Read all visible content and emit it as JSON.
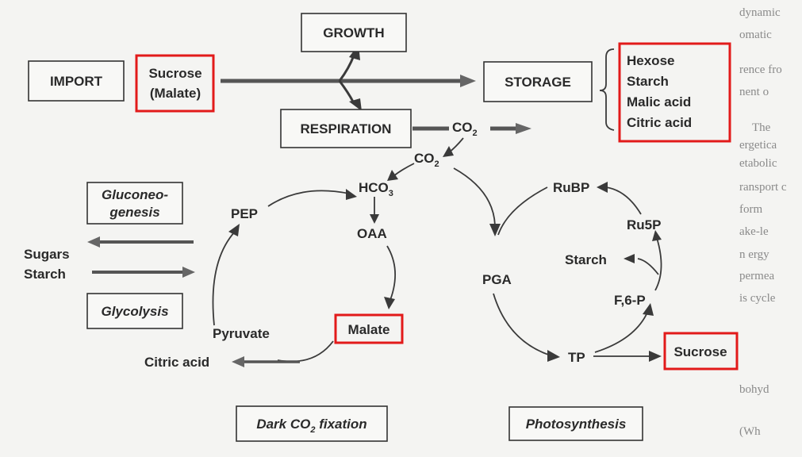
{
  "nodes": {
    "import": "IMPORT",
    "sucrose_import": "Sucrose",
    "malate_import": "(Malate)",
    "growth": "GROWTH",
    "storage": "STORAGE",
    "respiration": "RESPIRATION",
    "co2_resp": "CO",
    "co2_loop": "CO",
    "co2_sub": "2",
    "storage_items": [
      "Hexose",
      "Starch",
      "Malic acid",
      "Citric acid"
    ],
    "gluconeogenesis": [
      "Gluconeo-",
      "genesis"
    ],
    "sugars": "Sugars",
    "starch_left": "Starch",
    "glycolysis": "Glycolysis",
    "hco3": "HCO",
    "hco3_sub": "3",
    "pep": "PEP",
    "oaa": "OAA",
    "pyruvate": "Pyruvate",
    "malate": "Malate",
    "citric_acid": "Citric acid",
    "rubp": "RuBP",
    "ru5p": "Ru5P",
    "starch_right": "Starch",
    "pga": "PGA",
    "f6p": "F,6-P",
    "tp": "TP",
    "sucrose_right": "Sucrose",
    "dark_fix_a": "Dark CO",
    "dark_fix_sub": "2",
    "dark_fix_b": " fixation",
    "photosynthesis": "Photosynthesis"
  },
  "background_text": [
    "dynamic",
    "omatic",
    "rence fro",
    "nent o",
    "The",
    "ergetica",
    "etabolic",
    "ransport c",
    "form",
    "ake-le",
    "n ergy",
    "permea",
    "is cycle",
    "bohyd",
    "(Wh"
  ],
  "colors": {
    "highlight": "#e21a1a",
    "ink": "#2a2a2a"
  }
}
